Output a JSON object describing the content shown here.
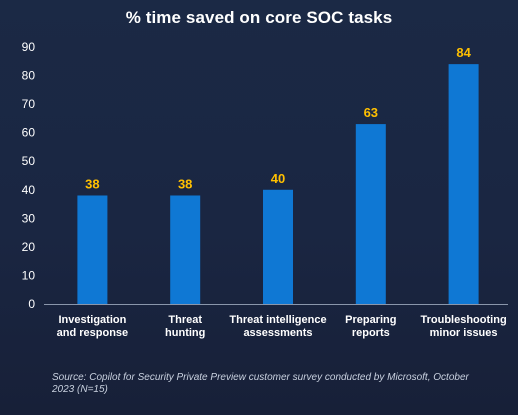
{
  "chart_data": {
    "type": "bar",
    "title": "% time saved on core SOC tasks",
    "categories": [
      [
        "Investigation",
        "and response"
      ],
      [
        "Threat",
        "hunting"
      ],
      [
        "Threat intelligence",
        "assessments"
      ],
      [
        "Preparing",
        "reports"
      ],
      [
        "Troubleshooting",
        "minor issues"
      ]
    ],
    "values": [
      38,
      38,
      40,
      63,
      84
    ],
    "ylim": [
      0,
      90
    ],
    "yticks": [
      0,
      10,
      20,
      30,
      40,
      50,
      60,
      70,
      80,
      90
    ],
    "xlabel": "",
    "ylabel": "",
    "grid": false,
    "bar_color": "#0f78d4",
    "label_color": "#ffc000",
    "source": "Source: Copilot for Security Private Preview customer survey conducted by Microsoft, October 2023 (N=15)"
  }
}
